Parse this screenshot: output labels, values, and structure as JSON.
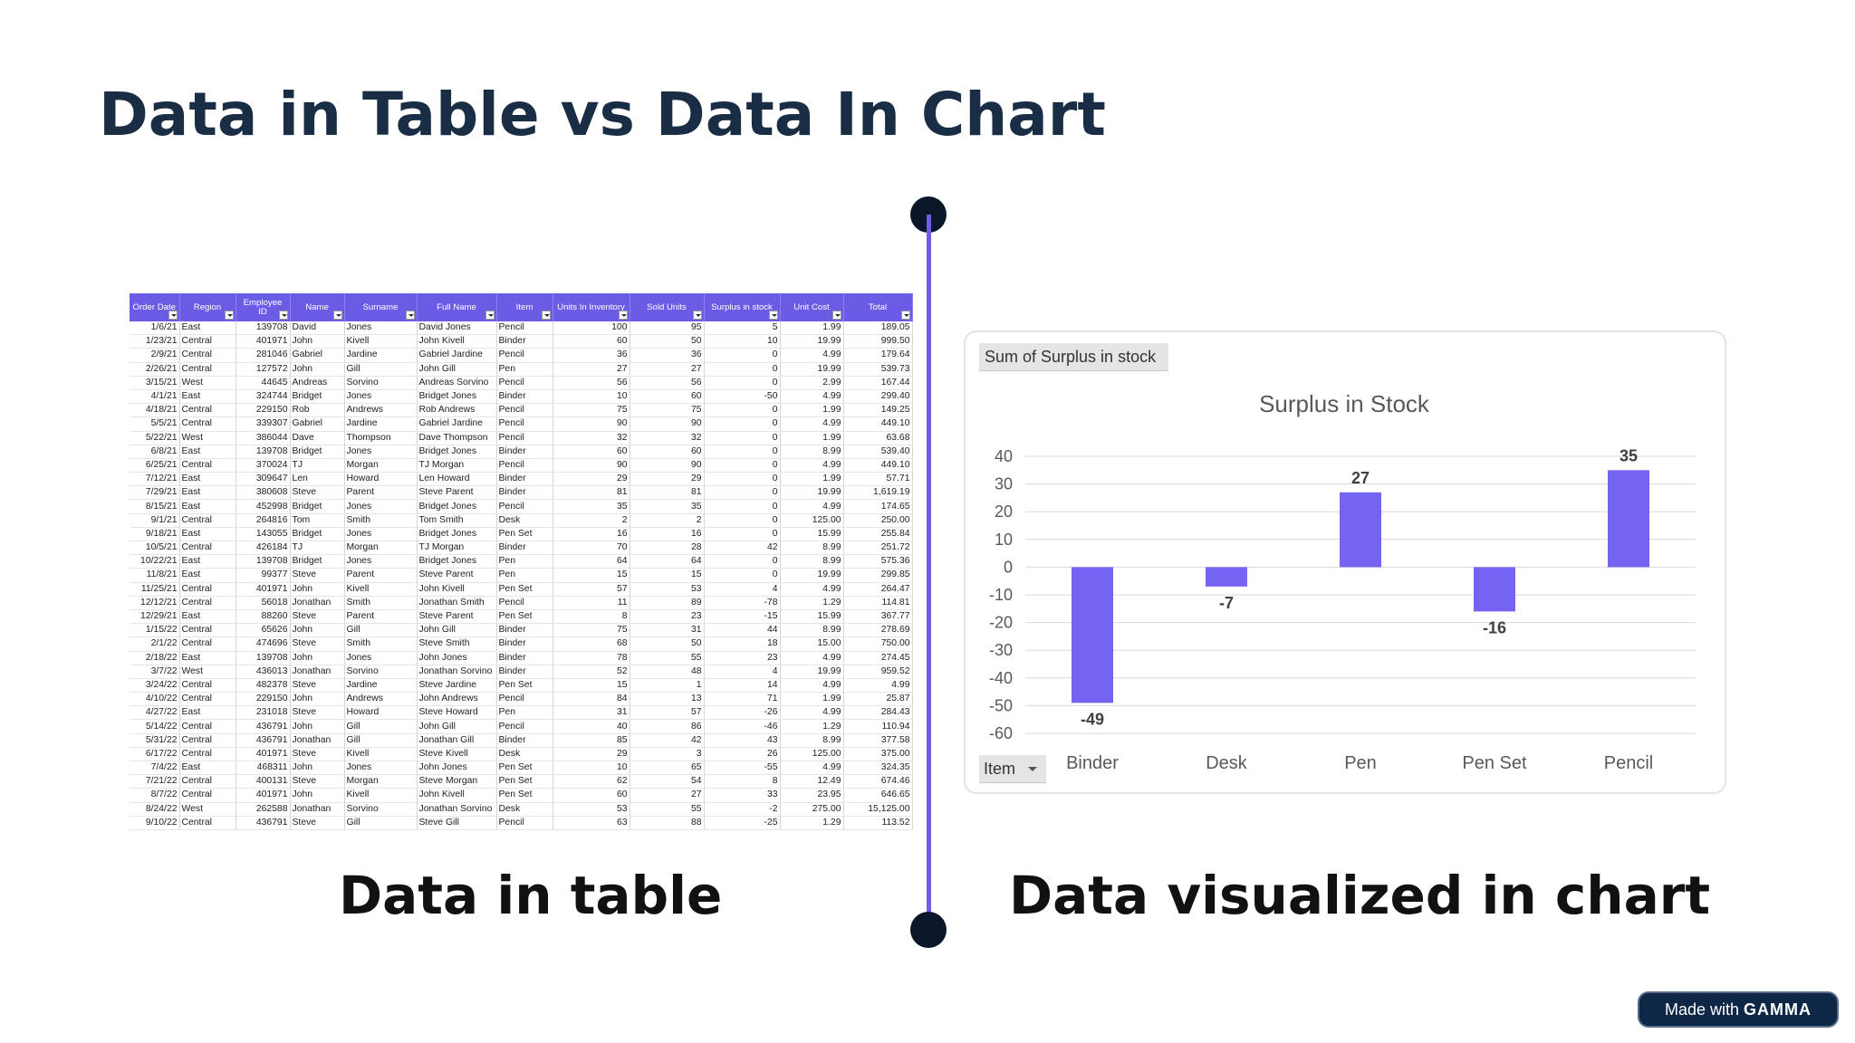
{
  "slide": {
    "title": "Data in Table vs Data In Chart",
    "caption_left": "Data in table",
    "caption_right": "Data visualized in chart",
    "badge_prefix": "Made with",
    "badge_brand": "GAMMA"
  },
  "colors": {
    "title": "#192d45",
    "accent": "#6e5ee6",
    "bar": "#7563f2",
    "dot": "#0b1728",
    "badge": "#0f2747"
  },
  "table": {
    "columns": [
      "Order Date",
      "Region",
      "Employee ID",
      "Name",
      "Surname",
      "Full Name",
      "Item",
      "Units In Inventory",
      "Sold Units",
      "Surplus in stock",
      "Unit Cost",
      "Total"
    ],
    "rows": [
      [
        "1/6/21",
        "East",
        "139708",
        "David",
        "Jones",
        "David Jones",
        "Pencil",
        "100",
        "95",
        "5",
        "1.99",
        "189.05"
      ],
      [
        "1/23/21",
        "Central",
        "401971",
        "John",
        "Kivell",
        "John Kivell",
        "Binder",
        "60",
        "50",
        "10",
        "19.99",
        "999.50"
      ],
      [
        "2/9/21",
        "Central",
        "281046",
        "Gabriel",
        "Jardine",
        "Gabriel Jardine",
        "Pencil",
        "36",
        "36",
        "0",
        "4.99",
        "179.64"
      ],
      [
        "2/26/21",
        "Central",
        "127572",
        "John",
        "Gill",
        "John Gill",
        "Pen",
        "27",
        "27",
        "0",
        "19.99",
        "539.73"
      ],
      [
        "3/15/21",
        "West",
        "44645",
        "Andreas",
        "Sorvino",
        "Andreas Sorvino",
        "Pencil",
        "56",
        "56",
        "0",
        "2.99",
        "167.44"
      ],
      [
        "4/1/21",
        "East",
        "324744",
        "Bridget",
        "Jones",
        "Bridget Jones",
        "Binder",
        "10",
        "60",
        "-50",
        "4.99",
        "299.40"
      ],
      [
        "4/18/21",
        "Central",
        "229150",
        "Rob",
        "Andrews",
        "Rob Andrews",
        "Pencil",
        "75",
        "75",
        "0",
        "1.99",
        "149.25"
      ],
      [
        "5/5/21",
        "Central",
        "339307",
        "Gabriel",
        "Jardine",
        "Gabriel Jardine",
        "Pencil",
        "90",
        "90",
        "0",
        "4.99",
        "449.10"
      ],
      [
        "5/22/21",
        "West",
        "386044",
        "Dave",
        "Thompson",
        "Dave Thompson",
        "Pencil",
        "32",
        "32",
        "0",
        "1.99",
        "63.68"
      ],
      [
        "6/8/21",
        "East",
        "139708",
        "Bridget",
        "Jones",
        "Bridget Jones",
        "Binder",
        "60",
        "60",
        "0",
        "8.99",
        "539.40"
      ],
      [
        "6/25/21",
        "Central",
        "370024",
        "TJ",
        "Morgan",
        "TJ Morgan",
        "Pencil",
        "90",
        "90",
        "0",
        "4.99",
        "449.10"
      ],
      [
        "7/12/21",
        "East",
        "309647",
        "Len",
        "Howard",
        "Len Howard",
        "Binder",
        "29",
        "29",
        "0",
        "1.99",
        "57.71"
      ],
      [
        "7/29/21",
        "East",
        "380608",
        "Steve",
        "Parent",
        "Steve Parent",
        "Binder",
        "81",
        "81",
        "0",
        "19.99",
        "1,619.19"
      ],
      [
        "8/15/21",
        "East",
        "452998",
        "Bridget",
        "Jones",
        "Bridget Jones",
        "Pencil",
        "35",
        "35",
        "0",
        "4.99",
        "174.65"
      ],
      [
        "9/1/21",
        "Central",
        "264816",
        "Tom",
        "Smith",
        "Tom Smith",
        "Desk",
        "2",
        "2",
        "0",
        "125.00",
        "250.00"
      ],
      [
        "9/18/21",
        "East",
        "143055",
        "Bridget",
        "Jones",
        "Bridget Jones",
        "Pen Set",
        "16",
        "16",
        "0",
        "15.99",
        "255.84"
      ],
      [
        "10/5/21",
        "Central",
        "426184",
        "TJ",
        "Morgan",
        "TJ Morgan",
        "Binder",
        "70",
        "28",
        "42",
        "8.99",
        "251.72"
      ],
      [
        "10/22/21",
        "East",
        "139708",
        "Bridget",
        "Jones",
        "Bridget Jones",
        "Pen",
        "64",
        "64",
        "0",
        "8.99",
        "575.36"
      ],
      [
        "11/8/21",
        "East",
        "99377",
        "Steve",
        "Parent",
        "Steve Parent",
        "Pen",
        "15",
        "15",
        "0",
        "19.99",
        "299.85"
      ],
      [
        "11/25/21",
        "Central",
        "401971",
        "John",
        "Kivell",
        "John Kivell",
        "Pen Set",
        "57",
        "53",
        "4",
        "4.99",
        "264.47"
      ],
      [
        "12/12/21",
        "Central",
        "56018",
        "Jonathan",
        "Smith",
        "Jonathan Smith",
        "Pencil",
        "11",
        "89",
        "-78",
        "1.29",
        "114.81"
      ],
      [
        "12/29/21",
        "East",
        "88260",
        "Steve",
        "Parent",
        "Steve Parent",
        "Pen Set",
        "8",
        "23",
        "-15",
        "15.99",
        "367.77"
      ],
      [
        "1/15/22",
        "Central",
        "65626",
        "John",
        "Gill",
        "John Gill",
        "Binder",
        "75",
        "31",
        "44",
        "8.99",
        "278.69"
      ],
      [
        "2/1/22",
        "Central",
        "474696",
        "Steve",
        "Smith",
        "Steve Smith",
        "Binder",
        "68",
        "50",
        "18",
        "15.00",
        "750.00"
      ],
      [
        "2/18/22",
        "East",
        "139708",
        "John",
        "Jones",
        "John Jones",
        "Binder",
        "78",
        "55",
        "23",
        "4.99",
        "274.45"
      ],
      [
        "3/7/22",
        "West",
        "436013",
        "Jonathan",
        "Sorvino",
        "Jonathan Sorvino",
        "Binder",
        "52",
        "48",
        "4",
        "19.99",
        "959.52"
      ],
      [
        "3/24/22",
        "Central",
        "482378",
        "Steve",
        "Jardine",
        "Steve Jardine",
        "Pen Set",
        "15",
        "1",
        "14",
        "4.99",
        "4.99"
      ],
      [
        "4/10/22",
        "Central",
        "229150",
        "John",
        "Andrews",
        "John Andrews",
        "Pencil",
        "84",
        "13",
        "71",
        "1.99",
        "25.87"
      ],
      [
        "4/27/22",
        "East",
        "231018",
        "Steve",
        "Howard",
        "Steve Howard",
        "Pen",
        "31",
        "57",
        "-26",
        "4.99",
        "284.43"
      ],
      [
        "5/14/22",
        "Central",
        "436791",
        "John",
        "Gill",
        "John Gill",
        "Pencil",
        "40",
        "86",
        "-46",
        "1.29",
        "110.94"
      ],
      [
        "5/31/22",
        "Central",
        "436791",
        "Jonathan",
        "Gill",
        "Jonathan Gill",
        "Binder",
        "85",
        "42",
        "43",
        "8.99",
        "377.58"
      ],
      [
        "6/17/22",
        "Central",
        "401971",
        "Steve",
        "Kivell",
        "Steve Kivell",
        "Desk",
        "29",
        "3",
        "26",
        "125.00",
        "375.00"
      ],
      [
        "7/4/22",
        "East",
        "468311",
        "John",
        "Jones",
        "John Jones",
        "Pen Set",
        "10",
        "65",
        "-55",
        "4.99",
        "324.35"
      ],
      [
        "7/21/22",
        "Central",
        "400131",
        "Steve",
        "Morgan",
        "Steve Morgan",
        "Pen Set",
        "62",
        "54",
        "8",
        "12.49",
        "674.46"
      ],
      [
        "8/7/22",
        "Central",
        "401971",
        "John",
        "Kivell",
        "John Kivell",
        "Pen Set",
        "60",
        "27",
        "33",
        "23.95",
        "646.65"
      ],
      [
        "8/24/22",
        "West",
        "262588",
        "Jonathan",
        "Sorvino",
        "Jonathan Sorvino",
        "Desk",
        "53",
        "55",
        "-2",
        "275.00",
        "15,125.00"
      ],
      [
        "9/10/22",
        "Central",
        "436791",
        "Steve",
        "Gill",
        "Steve Gill",
        "Pencil",
        "63",
        "88",
        "-25",
        "1.29",
        "113.52"
      ]
    ]
  },
  "chart_controls": {
    "sum_field_label": "Sum of Surplus in stock",
    "item_filter_label": "Item"
  },
  "chart_data": {
    "type": "bar",
    "title": "Surplus in Stock",
    "categories": [
      "Binder",
      "Desk",
      "Pen",
      "Pen Set",
      "Pencil"
    ],
    "values": [
      -49,
      -7,
      27,
      -16,
      35
    ],
    "ylim": [
      -60,
      40
    ],
    "yticks": [
      40,
      30,
      20,
      10,
      0,
      -10,
      -20,
      -30,
      -40,
      -50,
      -60
    ],
    "grid": true,
    "legend": "none",
    "data_labels": true
  }
}
